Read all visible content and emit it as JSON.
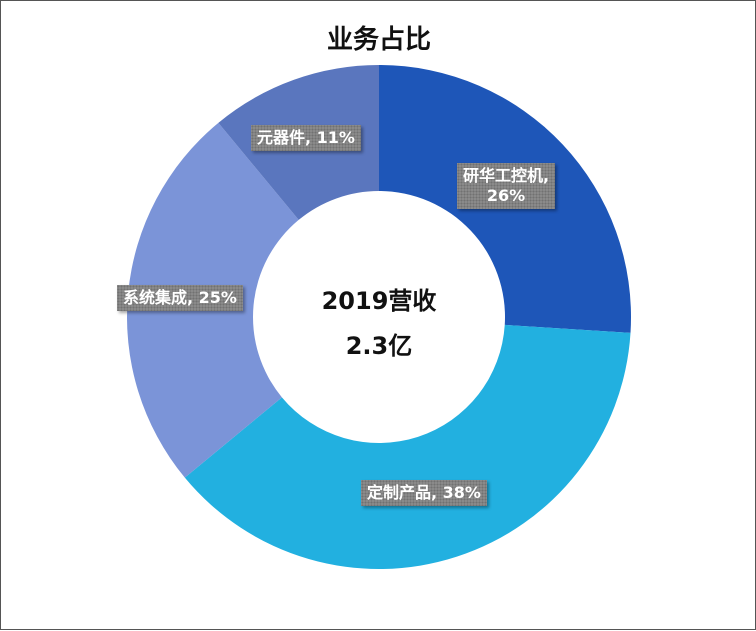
{
  "chart_data": {
    "type": "pie",
    "donut": true,
    "title": "业务占比",
    "center_text": [
      "2019营收",
      "2.3亿"
    ],
    "slices": [
      {
        "name": "研华工控机",
        "value": 26,
        "label": "研华工控机,",
        "label2": "26%",
        "color": "#1e56b8"
      },
      {
        "name": "定制产品",
        "value": 38,
        "label": "定制产品, 38%",
        "label2": "",
        "color": "#22b0e0"
      },
      {
        "name": "系统集成",
        "value": 25,
        "label": "系统集成, 25%",
        "label2": "",
        "color": "#7b94d8"
      },
      {
        "name": "元器件",
        "value": 11,
        "label": "元器件, 11%",
        "label2": "",
        "color": "#5a76be"
      }
    ]
  }
}
